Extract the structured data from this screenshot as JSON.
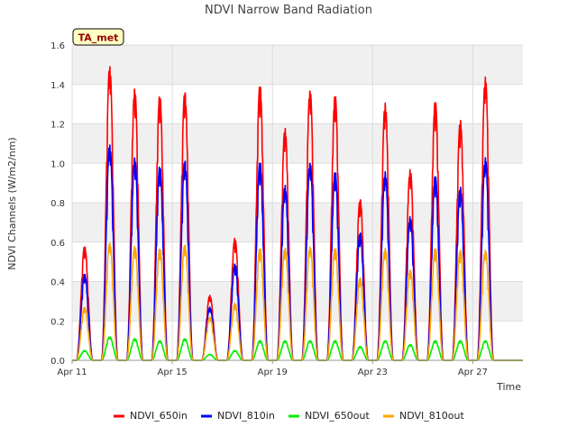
{
  "chart_data": {
    "type": "line",
    "title": "NDVI Narrow Band Radiation",
    "xlabel": "Time",
    "ylabel": "NDVI Channels (W/m2/nm)",
    "annotation": "TA_met",
    "xlim": [
      0,
      18
    ],
    "ylim": [
      0,
      1.6
    ],
    "x_unit": "days since Apr 11",
    "x_ticks": [
      {
        "value": 0,
        "label": "Apr 11"
      },
      {
        "value": 4,
        "label": "Apr 15"
      },
      {
        "value": 8,
        "label": "Apr 19"
      },
      {
        "value": 12,
        "label": "Apr 23"
      },
      {
        "value": 16,
        "label": "Apr 27"
      }
    ],
    "y_ticks": [
      {
        "value": 0.0,
        "label": "0.0"
      },
      {
        "value": 0.2,
        "label": "0.2"
      },
      {
        "value": 0.4,
        "label": "0.4"
      },
      {
        "value": 0.6,
        "label": "0.6"
      },
      {
        "value": 0.8,
        "label": "0.8"
      },
      {
        "value": 1.0,
        "label": "1.0"
      },
      {
        "value": 1.2,
        "label": "1.2"
      },
      {
        "value": 1.4,
        "label": "1.4"
      },
      {
        "value": 1.6,
        "label": "1.6"
      }
    ],
    "grid": true,
    "legend_position": "bottom",
    "days": [
      0.5,
      1.5,
      2.5,
      3.5,
      4.5,
      5.5,
      6.5,
      7.5,
      8.5,
      9.5,
      10.5,
      11.5,
      12.5,
      13.5,
      14.5,
      15.5,
      16.5
    ],
    "series": [
      {
        "name": "NDVI_650in",
        "color": "#ff0000",
        "daily_peaks": [
          0.58,
          1.5,
          1.38,
          1.35,
          1.37,
          0.33,
          0.62,
          1.4,
          1.18,
          1.38,
          1.35,
          0.82,
          1.31,
          0.97,
          1.32,
          1.22,
          1.44
        ]
      },
      {
        "name": "NDVI_810in",
        "color": "#0000ff",
        "daily_peaks": [
          0.44,
          1.1,
          1.03,
          0.99,
          1.02,
          0.27,
          0.49,
          1.01,
          0.89,
          1.01,
          0.96,
          0.65,
          0.96,
          0.73,
          0.94,
          0.88,
          1.03
        ]
      },
      {
        "name": "NDVI_650out",
        "color": "#00ee00",
        "daily_peaks": [
          0.05,
          0.12,
          0.11,
          0.1,
          0.11,
          0.03,
          0.05,
          0.1,
          0.1,
          0.1,
          0.1,
          0.07,
          0.1,
          0.08,
          0.1,
          0.1,
          0.1
        ]
      },
      {
        "name": "NDVI_810out",
        "color": "#ffa500",
        "daily_peaks": [
          0.27,
          0.6,
          0.58,
          0.57,
          0.59,
          0.22,
          0.29,
          0.57,
          0.57,
          0.58,
          0.57,
          0.42,
          0.57,
          0.46,
          0.57,
          0.56,
          0.56
        ]
      }
    ]
  }
}
